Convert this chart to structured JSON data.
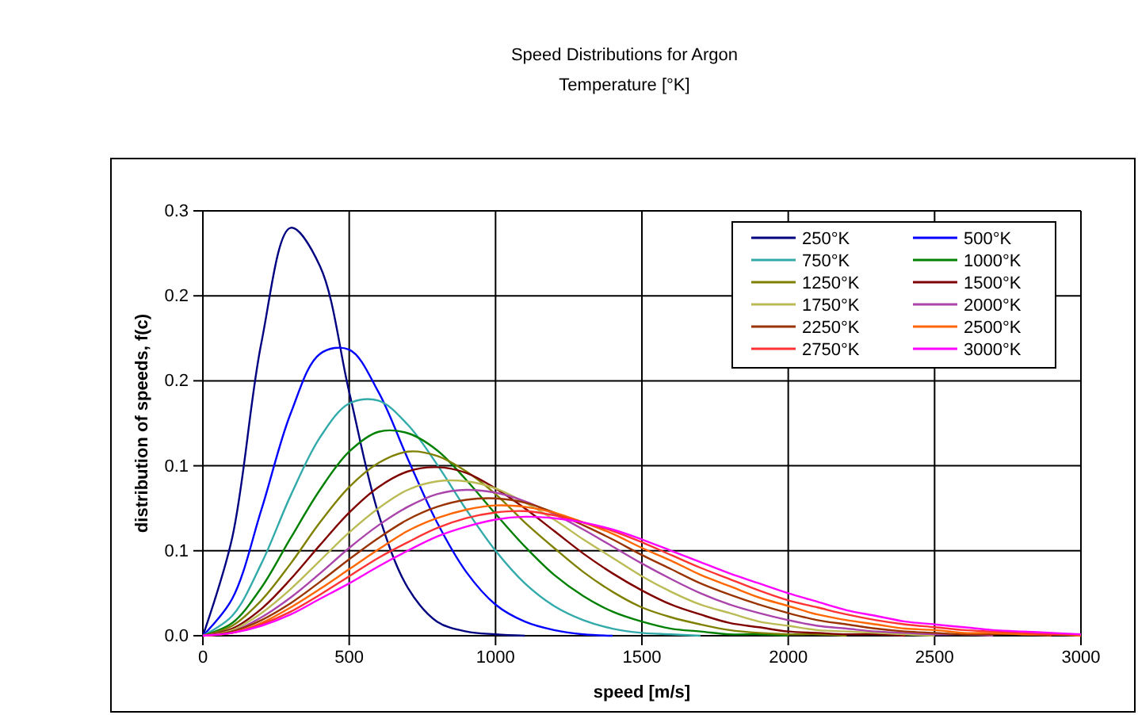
{
  "chart_data": {
    "type": "line",
    "title": "Speed Distributions for Argon",
    "subtitle": "Temperature [°K]",
    "xlabel": "speed [m/s]",
    "ylabel": "distribution of speeds, f(c)",
    "x": [
      0,
      100,
      200,
      300,
      400,
      500,
      600,
      700,
      800,
      900,
      1000,
      1100,
      1200,
      1300,
      1400,
      1500,
      1600,
      1700,
      1800,
      1900,
      2000,
      2100,
      2200,
      2300,
      2400,
      2500,
      2600,
      2700,
      2800,
      2900,
      3000
    ],
    "xlim": [
      0,
      3000
    ],
    "xticks": [
      0,
      500,
      1000,
      1500,
      2000,
      2500,
      3000
    ],
    "ylim": [
      0,
      0.3
    ],
    "yticks": [
      {
        "value": 0,
        "label": "0.0"
      },
      {
        "value": 0.06,
        "label": "0.1"
      },
      {
        "value": 0.12,
        "label": "0.1"
      },
      {
        "value": 0.18,
        "label": "0.2"
      },
      {
        "value": 0.24,
        "label": "0.2"
      },
      {
        "value": 0.3,
        "label": "0.3"
      }
    ],
    "grid": true,
    "legend": "top right",
    "marker": "none",
    "line_style": "solid",
    "series": [
      {
        "name": "250°K",
        "color": "#000080",
        "values": [
          0,
          0.069,
          0.207,
          0.288,
          0.261,
          0.172,
          0.086,
          0.034,
          0.01,
          0.003,
          0.001,
          0,
          null,
          null,
          null,
          null,
          null,
          null,
          null,
          null,
          null,
          null,
          null,
          null,
          null,
          null,
          null,
          null,
          null,
          null,
          null
        ]
      },
      {
        "name": "500°K",
        "color": "#0000ff",
        "values": [
          0,
          0.026,
          0.089,
          0.157,
          0.199,
          0.202,
          0.172,
          0.125,
          0.08,
          0.045,
          0.022,
          0.01,
          0.004,
          0.001,
          0,
          null,
          null,
          null,
          null,
          null,
          null,
          null,
          null,
          null,
          null,
          null,
          null,
          null,
          null,
          null,
          null
        ]
      },
      {
        "name": "750°K",
        "color": "#33aaaa",
        "values": [
          0,
          0.014,
          0.051,
          0.099,
          0.14,
          0.164,
          0.166,
          0.149,
          0.121,
          0.089,
          0.06,
          0.037,
          0.021,
          0.011,
          0.005,
          0.002,
          0.001,
          0,
          null,
          null,
          null,
          null,
          null,
          null,
          null,
          null,
          null,
          null,
          null,
          null,
          null
        ]
      },
      {
        "name": "1000°K",
        "color": "#008000",
        "values": [
          0,
          0.009,
          0.034,
          0.069,
          0.103,
          0.13,
          0.144,
          0.143,
          0.131,
          0.11,
          0.086,
          0.063,
          0.043,
          0.028,
          0.017,
          0.01,
          0.005,
          0.003,
          0.001,
          0.001,
          0,
          null,
          null,
          null,
          null,
          null,
          null,
          null,
          null,
          null,
          null
        ]
      },
      {
        "name": "1250°K",
        "color": "#808000",
        "values": [
          0,
          0.007,
          0.025,
          0.051,
          0.08,
          0.105,
          0.122,
          0.13,
          0.127,
          0.116,
          0.1,
          0.08,
          0.062,
          0.045,
          0.031,
          0.02,
          0.013,
          0.008,
          0.004,
          0.002,
          0.001,
          0.001,
          0,
          null,
          null,
          null,
          null,
          null,
          null,
          null,
          null
        ]
      },
      {
        "name": "1500°K",
        "color": "#800000",
        "values": [
          0,
          0.005,
          0.019,
          0.04,
          0.064,
          0.087,
          0.105,
          0.116,
          0.119,
          0.115,
          0.104,
          0.09,
          0.074,
          0.058,
          0.044,
          0.032,
          0.022,
          0.015,
          0.009,
          0.006,
          0.003,
          0.002,
          0.001,
          0.001,
          0,
          null,
          null,
          null,
          null,
          null,
          null
        ]
      },
      {
        "name": "1750°K",
        "color": "#bbbb55",
        "values": [
          0,
          0.004,
          0.016,
          0.033,
          0.053,
          0.073,
          0.09,
          0.103,
          0.109,
          0.109,
          0.104,
          0.094,
          0.082,
          0.068,
          0.055,
          0.042,
          0.031,
          0.022,
          0.016,
          0.01,
          0.007,
          0.004,
          0.003,
          0.002,
          0.001,
          0,
          null,
          null,
          null,
          null,
          null
        ]
      },
      {
        "name": "2000°K",
        "color": "#aa44aa",
        "values": [
          0,
          0.003,
          0.013,
          0.027,
          0.044,
          0.062,
          0.078,
          0.091,
          0.1,
          0.103,
          0.101,
          0.095,
          0.086,
          0.075,
          0.063,
          0.051,
          0.04,
          0.03,
          0.022,
          0.016,
          0.011,
          0.007,
          0.005,
          0.003,
          0.002,
          0.001,
          0.001,
          0,
          null,
          null,
          null
        ]
      },
      {
        "name": "2250°K",
        "color": "#993300",
        "values": [
          0,
          0.003,
          0.011,
          0.023,
          0.038,
          0.054,
          0.069,
          0.082,
          0.091,
          0.096,
          0.097,
          0.094,
          0.087,
          0.078,
          0.068,
          0.057,
          0.047,
          0.037,
          0.029,
          0.022,
          0.016,
          0.011,
          0.008,
          0.005,
          0.003,
          0.002,
          0.001,
          0.001,
          0.001,
          0,
          null
        ]
      },
      {
        "name": "2500°K",
        "color": "#ff6600",
        "values": [
          0,
          0.002,
          0.009,
          0.02,
          0.033,
          0.047,
          0.061,
          0.074,
          0.083,
          0.089,
          0.092,
          0.091,
          0.087,
          0.08,
          0.072,
          0.062,
          0.053,
          0.043,
          0.035,
          0.027,
          0.021,
          0.015,
          0.011,
          0.008,
          0.005,
          0.004,
          0.002,
          0.002,
          0.001,
          0.001,
          0
        ]
      },
      {
        "name": "2750°K",
        "color": "#ff3333",
        "values": [
          0,
          0.002,
          0.008,
          0.017,
          0.029,
          0.042,
          0.055,
          0.066,
          0.076,
          0.083,
          0.087,
          0.088,
          0.085,
          0.08,
          0.074,
          0.066,
          0.057,
          0.048,
          0.04,
          0.032,
          0.025,
          0.02,
          0.015,
          0.011,
          0.008,
          0.006,
          0.004,
          0.003,
          0.002,
          0.001,
          0.001
        ]
      },
      {
        "name": "3000°K",
        "color": "#ff00ff",
        "values": [
          0,
          0.002,
          0.007,
          0.015,
          0.026,
          0.037,
          0.049,
          0.06,
          0.07,
          0.077,
          0.082,
          0.084,
          0.083,
          0.08,
          0.075,
          0.068,
          0.06,
          0.052,
          0.044,
          0.037,
          0.03,
          0.024,
          0.018,
          0.014,
          0.01,
          0.008,
          0.006,
          0.004,
          0.003,
          0.002,
          0.001
        ]
      }
    ]
  }
}
